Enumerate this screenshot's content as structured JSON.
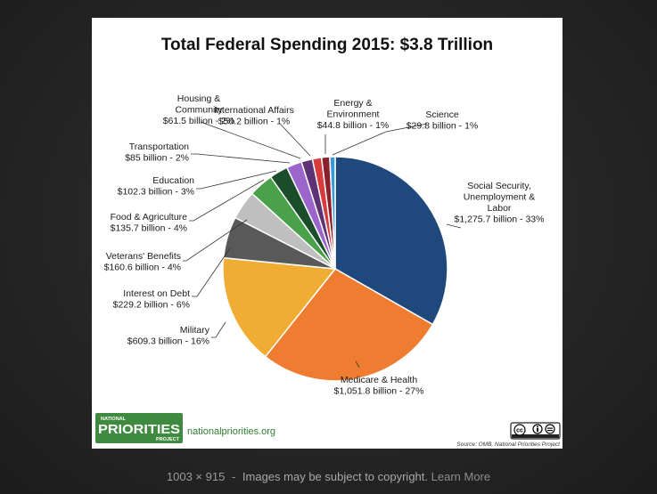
{
  "footer": {
    "dimensions": "1003 × 915",
    "separator": "-",
    "copyright_notice": "Images may be subject to copyright.",
    "learn_more": "Learn More"
  },
  "branding": {
    "logo_top": "NATIONAL",
    "logo_main": "PRIORITIES",
    "logo_bottom": "PROJECT",
    "site": "nationalpriorities.org",
    "source": "Source: OMB, National Priorities Project",
    "license_badge": "cc"
  },
  "colors": {
    "social_security": "#1f497d",
    "medicare": "#ef7d31",
    "military": "#f1ad33",
    "interest": "#595959",
    "veterans": "#bfbfbf",
    "food": "#4aa14a",
    "education": "#1b4d2a",
    "transportation": "#9b65cc",
    "housing": "#5e3376",
    "international": "#d83b3b",
    "energy": "#8b1f2b",
    "science": "#3a9ad9"
  },
  "chart_data": {
    "type": "pie",
    "title": "Total Federal Spending 2015: $3.8 Trillion",
    "units": "billion",
    "slices": [
      {
        "key": "social_security",
        "label_lines": [
          "Social Security,",
          "Unemployment &",
          "Labor"
        ],
        "value_text": "$1,275.7 billion - 33%",
        "value": 1275.7,
        "percent": 33
      },
      {
        "key": "medicare",
        "label_lines": [
          "Medicare & Health"
        ],
        "value_text": "$1,051.8 billion - 27%",
        "value": 1051.8,
        "percent": 27
      },
      {
        "key": "military",
        "label_lines": [
          "Military"
        ],
        "value_text": "$609.3 billion - 16%",
        "value": 609.3,
        "percent": 16
      },
      {
        "key": "interest",
        "label_lines": [
          "Interest on Debt"
        ],
        "value_text": "$229.2 billion - 6%",
        "value": 229.2,
        "percent": 6
      },
      {
        "key": "veterans",
        "label_lines": [
          "Veterans' Benefits"
        ],
        "value_text": "$160.6 billion - 4%",
        "value": 160.6,
        "percent": 4
      },
      {
        "key": "food",
        "label_lines": [
          "Food & Agriculture"
        ],
        "value_text": "$135.7 billion - 4%",
        "value": 135.7,
        "percent": 4
      },
      {
        "key": "education",
        "label_lines": [
          "Education"
        ],
        "value_text": "$102.3 billion - 3%",
        "value": 102.3,
        "percent": 3
      },
      {
        "key": "transportation",
        "label_lines": [
          "Transportation"
        ],
        "value_text": "$85 billion - 2%",
        "value": 85,
        "percent": 2
      },
      {
        "key": "housing",
        "label_lines": [
          "Housing &",
          "Community"
        ],
        "value_text": "$61.5 billion - 2%",
        "value": 61.5,
        "percent": 2
      },
      {
        "key": "international",
        "label_lines": [
          "International Affairs"
        ],
        "value_text": "$50.2 billion - 1%",
        "value": 50.2,
        "percent": 1
      },
      {
        "key": "energy",
        "label_lines": [
          "Energy &",
          "Environment"
        ],
        "value_text": "$44.8 billion - 1%",
        "value": 44.8,
        "percent": 1
      },
      {
        "key": "science",
        "label_lines": [
          "Science"
        ],
        "value_text": "$29.8 billion - 1%",
        "value": 29.8,
        "percent": 1
      }
    ]
  }
}
